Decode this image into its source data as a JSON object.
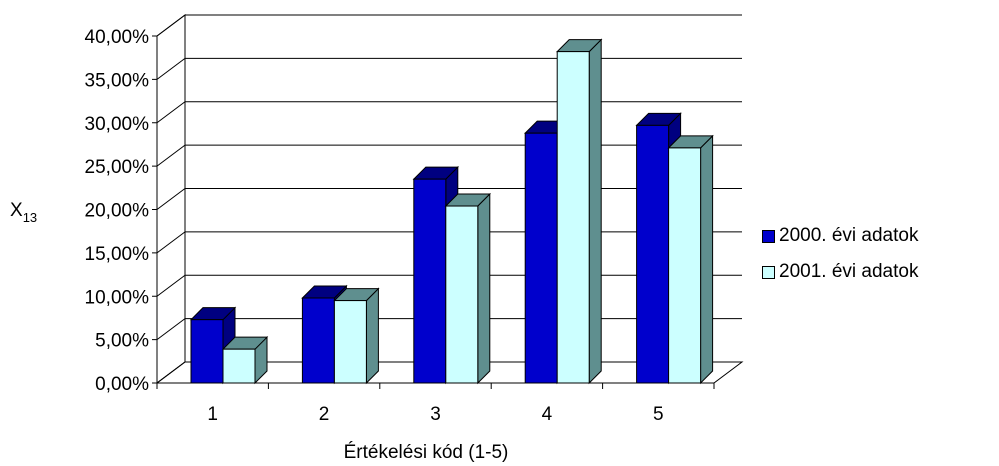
{
  "chart_data": {
    "type": "bar",
    "categories": [
      "1",
      "2",
      "3",
      "4",
      "5"
    ],
    "series": [
      {
        "name": "2000. évi adatok",
        "values": [
          0.073,
          0.098,
          0.235,
          0.288,
          0.297
        ]
      },
      {
        "name": "2001. évi adatok",
        "values": [
          0.039,
          0.095,
          0.204,
          0.382,
          0.271
        ]
      }
    ],
    "title": "",
    "xlabel": "Értékelési kód (1-5)",
    "ylabel": "X",
    "ylabel_subscript": "13",
    "ylim": [
      0,
      0.4
    ],
    "yticks": [
      "0,00%",
      "5,00%",
      "10,00%",
      "15,00%",
      "20,00%",
      "25,00%",
      "30,00%",
      "35,00%",
      "40,00%"
    ],
    "legend_position": "right",
    "grid": true,
    "style": "3d-bar",
    "colors": {
      "series1": "#0000cc",
      "series1_side": "#000080",
      "series2": "#ccffff",
      "series2_side": "#5f8f8f"
    }
  }
}
